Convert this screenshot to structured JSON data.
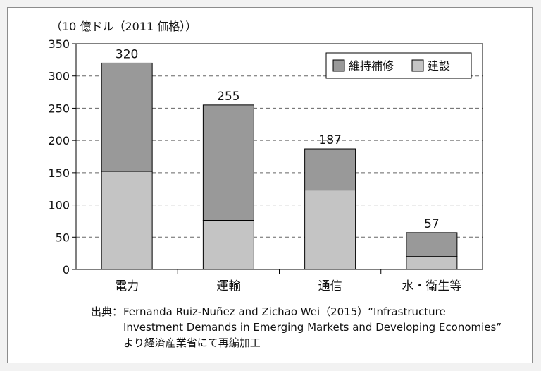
{
  "unit_label": "（10 億ドル（2011 価格））",
  "source": {
    "label": "出典：",
    "text": "Fernanda Ruiz-Nuñez and Zichao Wei（2015）“Infrastructure Investment Demands in Emerging Markets and Developing Economies” より経済産業省にて再編加工"
  },
  "colors": {
    "maintenance": "#999999",
    "construction": "#c4c4c4",
    "axis": "#000000",
    "grid": "#666666"
  },
  "chart_data": {
    "type": "bar",
    "stacked": true,
    "categories": [
      "電力",
      "運輸",
      "通信",
      "水・衛生等"
    ],
    "series": [
      {
        "name": "建設",
        "values": [
          152,
          76,
          123,
          20
        ]
      },
      {
        "name": "維持補修",
        "values": [
          168,
          179,
          64,
          37
        ]
      }
    ],
    "totals": [
      320,
      255,
      187,
      57
    ],
    "ylim": [
      0,
      350
    ],
    "yticks": [
      0,
      50,
      100,
      150,
      200,
      250,
      300,
      350
    ],
    "grid": true,
    "legend": {
      "position": "top-right",
      "entries": [
        "維持補修",
        "建設"
      ]
    }
  }
}
